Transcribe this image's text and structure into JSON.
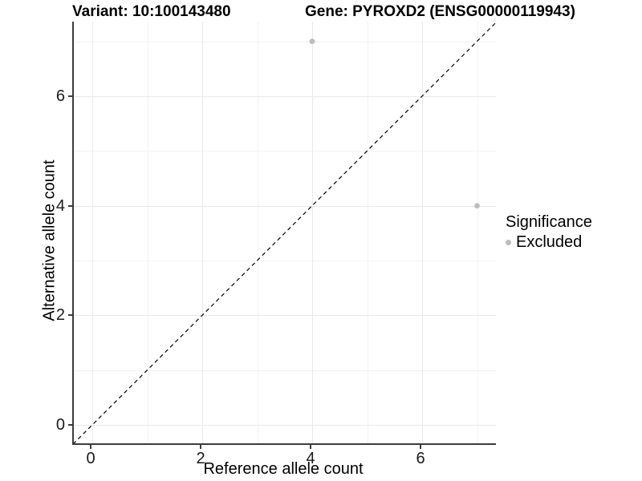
{
  "header": {
    "variant_title": "Variant: 10:100143480",
    "gene_title": "Gene: PYROXD2 (ENSG00000119943)"
  },
  "axes": {
    "x": {
      "label": "Reference allele count",
      "tick_values": [
        0,
        2,
        4,
        6
      ]
    },
    "y": {
      "label": "Alternative allele count",
      "tick_values": [
        0,
        2,
        4,
        6
      ]
    }
  },
  "legend": {
    "title": "Significance",
    "items": [
      {
        "label": "Excluded",
        "color": "#bdbdbd"
      }
    ]
  },
  "colors": {
    "axis_line": "#3c3c3c",
    "grid_major": "#e9e9e9",
    "grid_minor": "#f2f2f2",
    "point": "#bdbdbd",
    "identity_line": "#000000",
    "text": "#1a1a1a"
  },
  "chart_data": {
    "type": "scatter",
    "title": "Variant: 10:100143480 / Gene: PYROXD2 (ENSG00000119943)",
    "xlabel": "Reference allele count",
    "ylabel": "Alternative allele count",
    "xlim": [
      -0.35,
      7.35
    ],
    "ylim": [
      -0.35,
      7.35
    ],
    "grid": "on",
    "gridlines": {
      "x_major": [
        0,
        2,
        4,
        6
      ],
      "x_minor": [
        1,
        3,
        5,
        7
      ],
      "y_major": [
        0,
        2,
        4,
        6
      ],
      "y_minor": [
        1,
        3,
        5,
        7
      ]
    },
    "series": [
      {
        "name": "Excluded",
        "color": "#bdbdbd",
        "points": [
          {
            "x": 4,
            "y": 7
          },
          {
            "x": 7,
            "y": 4
          }
        ]
      }
    ],
    "reference_line": {
      "type": "identity",
      "equation": "y = x",
      "style": "dashed",
      "color": "#000000"
    },
    "legend_position": "right",
    "legend_title": "Significance"
  }
}
